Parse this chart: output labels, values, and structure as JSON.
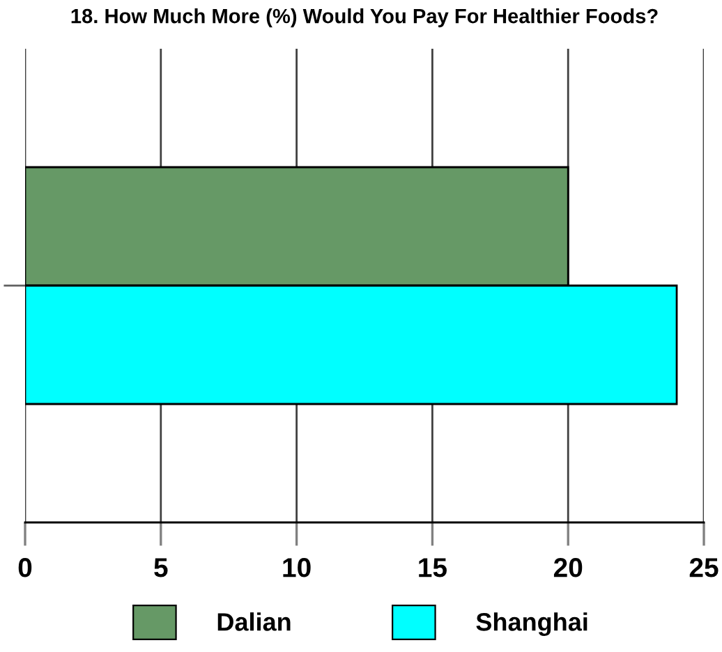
{
  "chart_data": {
    "type": "bar",
    "orientation": "horizontal",
    "title": "18. How Much More (%) Would You Pay For Healthier Foods?",
    "categories": [
      null
    ],
    "series": [
      {
        "name": "Dalian",
        "color": "#669966",
        "values": [
          20
        ]
      },
      {
        "name": "Shanghai",
        "color": "#00ffff",
        "values": [
          24
        ]
      }
    ],
    "xlim": [
      0,
      25
    ],
    "xticks": [
      0,
      5,
      10,
      15,
      20,
      25
    ],
    "grid": "x",
    "legend": "bottom"
  }
}
